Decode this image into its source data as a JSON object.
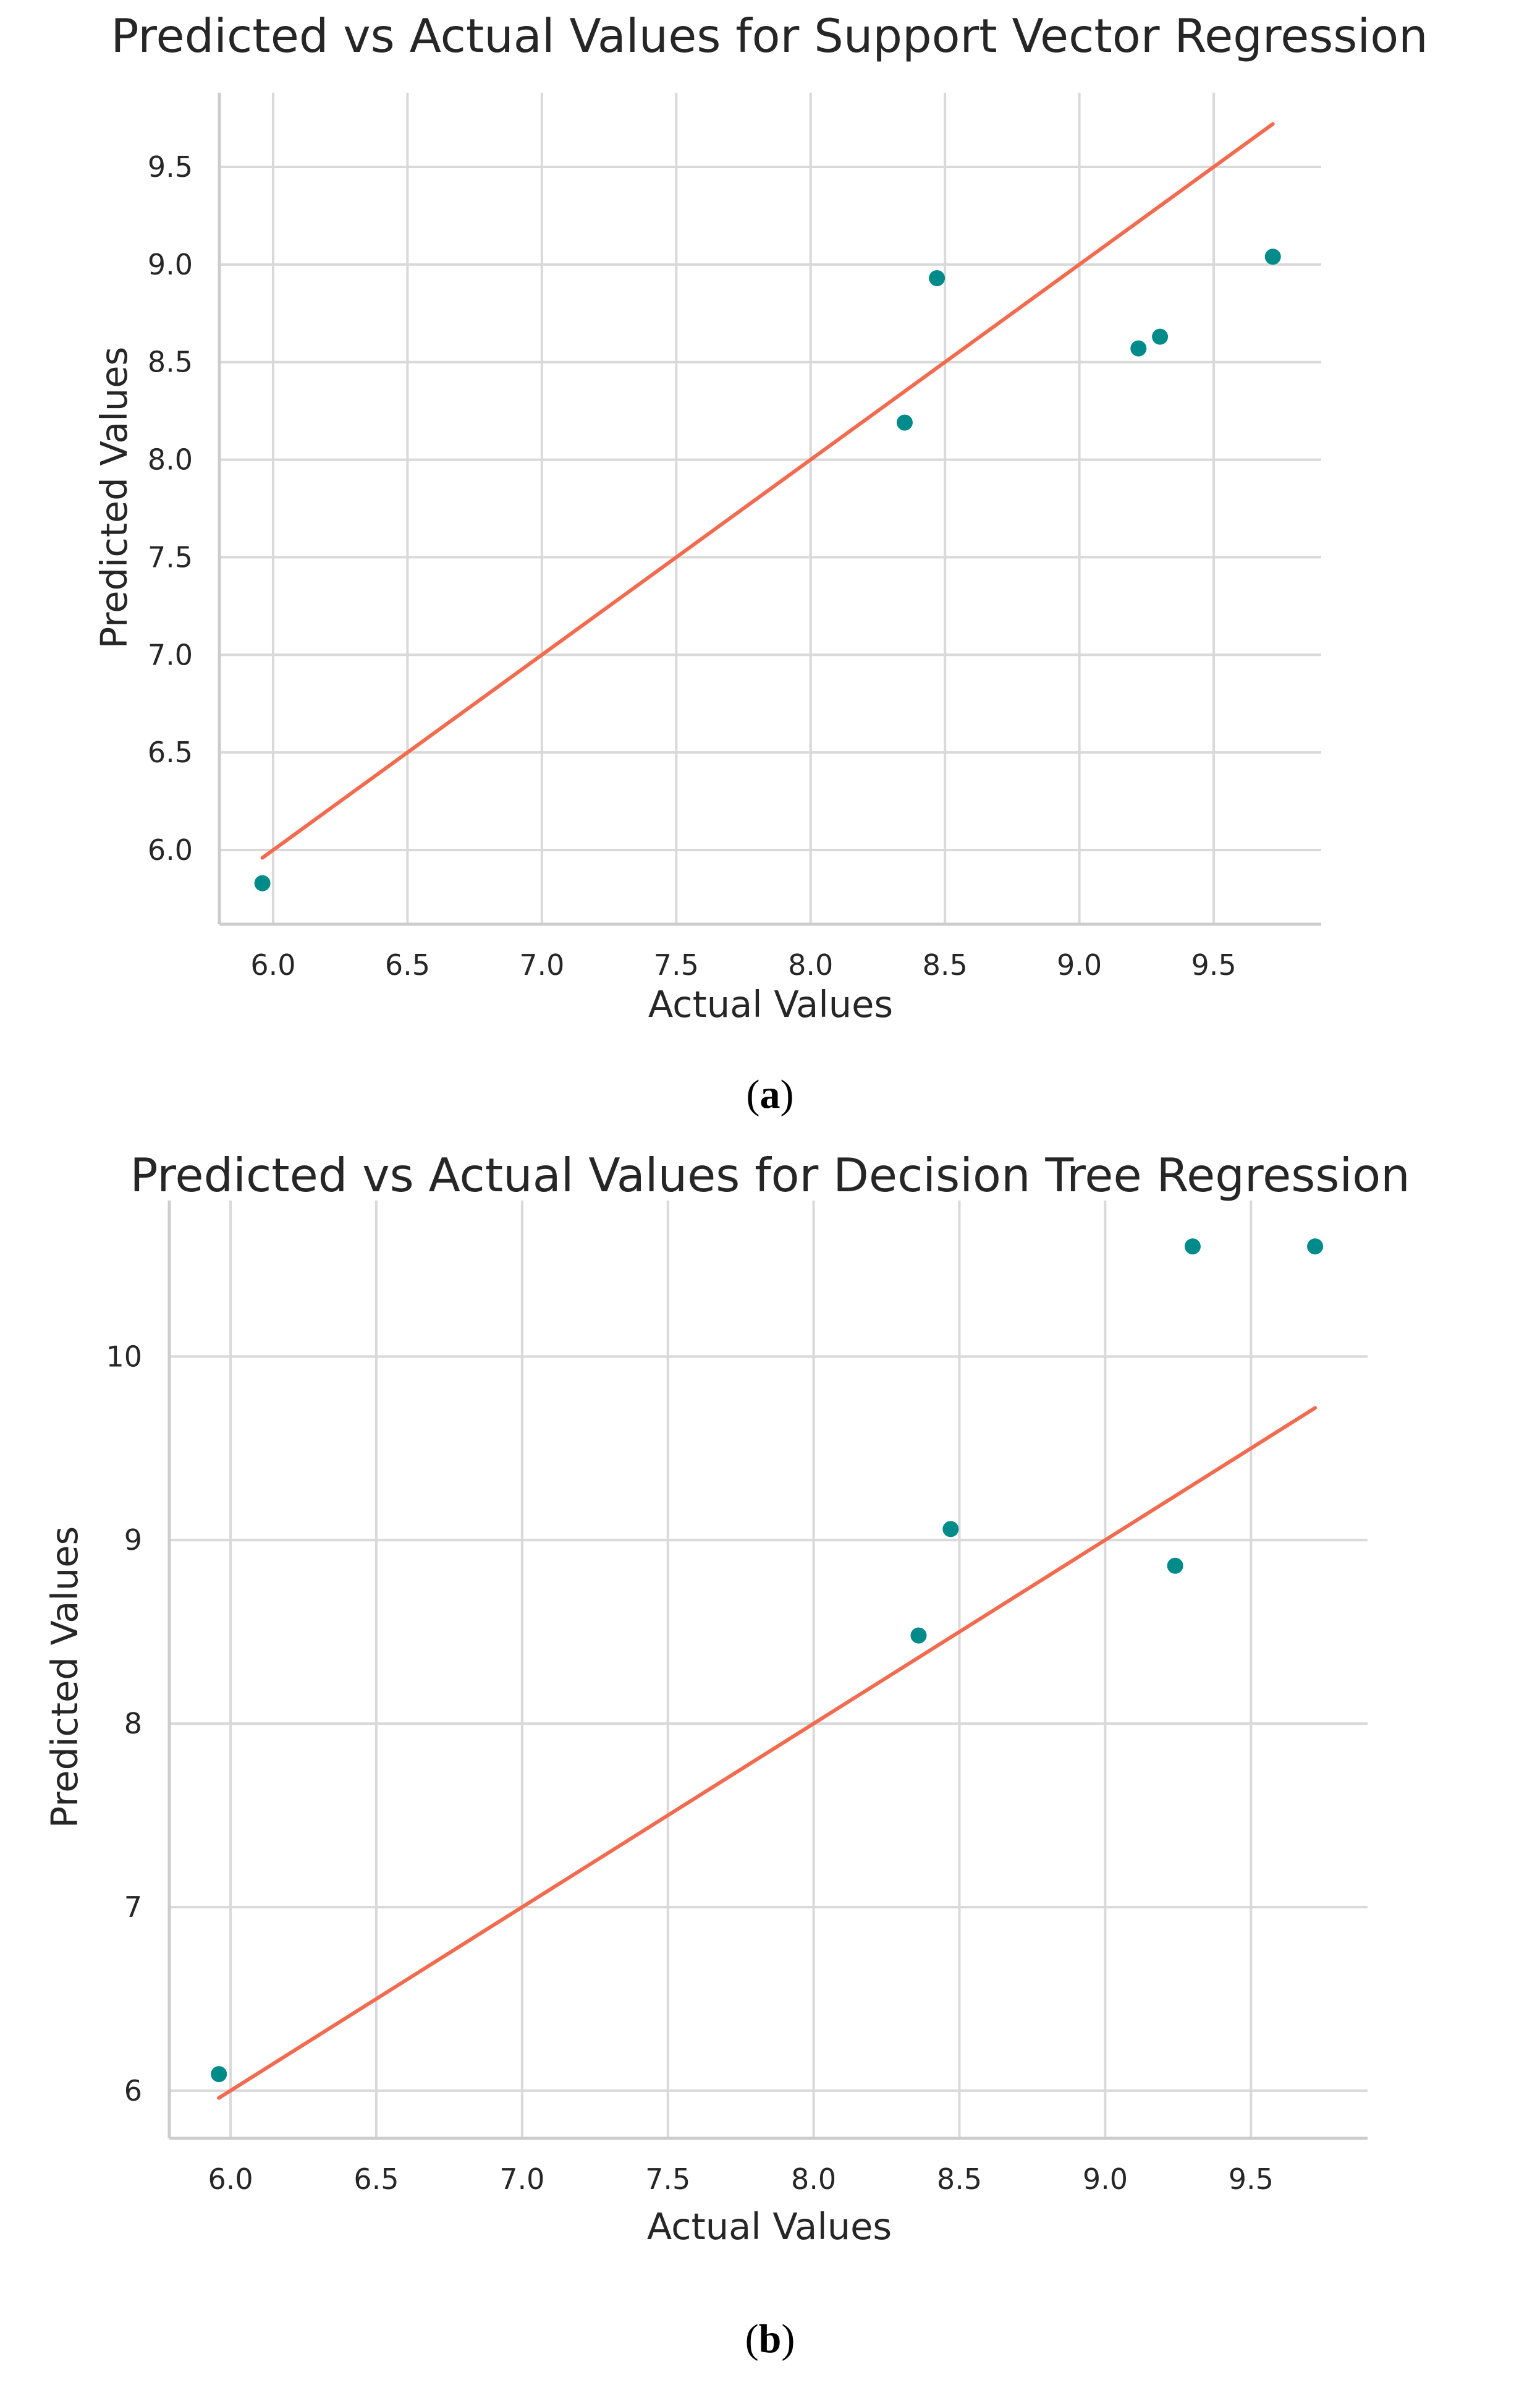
{
  "chart_data": [
    {
      "type": "scatter",
      "title": "Predicted vs Actual Values for Support Vector Regression",
      "xlabel": "Actual Values",
      "ylabel": "Predicted Values",
      "caption": {
        "open": "(",
        "letter": "a",
        "close": ")"
      },
      "xlim": [
        5.8,
        9.9
      ],
      "ylim": [
        5.62,
        9.88
      ],
      "xticks": [
        "6.0",
        "6.5",
        "7.0",
        "7.5",
        "8.0",
        "8.5",
        "9.0",
        "9.5"
      ],
      "yticks": [
        "6.0",
        "6.5",
        "7.0",
        "7.5",
        "8.0",
        "8.5",
        "9.0",
        "9.5"
      ],
      "grid": true,
      "point_color": "#008b8b",
      "line_color": "#f26b4f",
      "reference_line": {
        "x": [
          5.96,
          9.72
        ],
        "y": [
          5.96,
          9.72
        ]
      },
      "points": [
        {
          "x": 5.96,
          "y": 5.83
        },
        {
          "x": 8.35,
          "y": 8.19
        },
        {
          "x": 8.47,
          "y": 8.93
        },
        {
          "x": 9.22,
          "y": 8.57
        },
        {
          "x": 9.3,
          "y": 8.63
        },
        {
          "x": 9.72,
          "y": 9.04
        }
      ]
    },
    {
      "type": "scatter",
      "title": "Predicted vs Actual Values for Decision Tree Regression",
      "xlabel": "Actual Values",
      "ylabel": "Predicted Values",
      "caption": {
        "open": "(",
        "letter": "b",
        "close": ")"
      },
      "xlim": [
        5.79,
        9.9
      ],
      "ylim": [
        5.74,
        10.85
      ],
      "xticks": [
        "6.0",
        "6.5",
        "7.0",
        "7.5",
        "8.0",
        "8.5",
        "9.0",
        "9.5"
      ],
      "yticks": [
        "6",
        "7",
        "8",
        "9",
        "10"
      ],
      "grid": true,
      "point_color": "#008b8b",
      "line_color": "#f26b4f",
      "reference_line": {
        "x": [
          5.96,
          9.72
        ],
        "y": [
          5.96,
          9.72
        ]
      },
      "points": [
        {
          "x": 5.96,
          "y": 6.09
        },
        {
          "x": 8.36,
          "y": 8.48
        },
        {
          "x": 8.47,
          "y": 9.06
        },
        {
          "x": 9.24,
          "y": 8.86
        },
        {
          "x": 9.3,
          "y": 10.6
        },
        {
          "x": 9.72,
          "y": 10.6
        }
      ]
    }
  ]
}
